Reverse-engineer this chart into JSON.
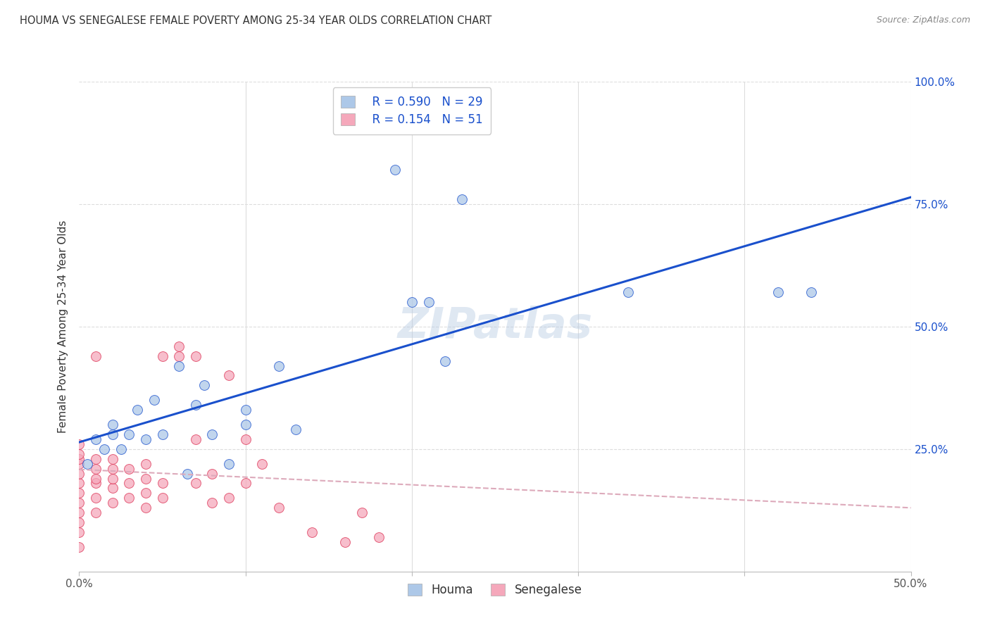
{
  "title": "HOUMA VS SENEGALESE FEMALE POVERTY AMONG 25-34 YEAR OLDS CORRELATION CHART",
  "source": "Source: ZipAtlas.com",
  "ylabel": "Female Poverty Among 25-34 Year Olds",
  "xlim": [
    0.0,
    0.5
  ],
  "ylim": [
    0.0,
    1.0
  ],
  "xticks": [
    0.0,
    0.1,
    0.2,
    0.3,
    0.4,
    0.5
  ],
  "xticklabels": [
    "0.0%",
    "",
    "",
    "",
    "",
    "50.0%"
  ],
  "yticks": [
    0.0,
    0.25,
    0.5,
    0.75,
    1.0
  ],
  "yticklabels": [
    "",
    "25.0%",
    "50.0%",
    "75.0%",
    "100.0%"
  ],
  "houma_R": "0.590",
  "houma_N": "29",
  "senegalese_R": "0.154",
  "senegalese_N": "51",
  "houma_color": "#adc8e8",
  "senegalese_color": "#f5a8bb",
  "houma_line_color": "#1a50cc",
  "senegalese_line_color": "#dd3355",
  "watermark": "ZIPatlas",
  "houma_points_x": [
    0.005,
    0.01,
    0.015,
    0.02,
    0.02,
    0.025,
    0.03,
    0.035,
    0.04,
    0.045,
    0.05,
    0.06,
    0.065,
    0.07,
    0.075,
    0.08,
    0.09,
    0.1,
    0.1,
    0.12,
    0.13,
    0.2,
    0.21,
    0.22,
    0.33,
    0.42,
    0.44,
    0.23,
    0.19
  ],
  "houma_points_y": [
    0.22,
    0.27,
    0.25,
    0.28,
    0.3,
    0.25,
    0.28,
    0.33,
    0.27,
    0.35,
    0.28,
    0.42,
    0.2,
    0.34,
    0.38,
    0.28,
    0.22,
    0.3,
    0.33,
    0.42,
    0.29,
    0.55,
    0.55,
    0.43,
    0.57,
    0.57,
    0.57,
    0.76,
    0.82
  ],
  "senegalese_points_x": [
    0.0,
    0.0,
    0.0,
    0.0,
    0.0,
    0.0,
    0.0,
    0.0,
    0.0,
    0.0,
    0.0,
    0.0,
    0.01,
    0.01,
    0.01,
    0.01,
    0.01,
    0.01,
    0.01,
    0.02,
    0.02,
    0.02,
    0.02,
    0.02,
    0.03,
    0.03,
    0.03,
    0.04,
    0.04,
    0.04,
    0.04,
    0.05,
    0.05,
    0.05,
    0.06,
    0.06,
    0.07,
    0.07,
    0.07,
    0.08,
    0.08,
    0.09,
    0.09,
    0.1,
    0.1,
    0.11,
    0.12,
    0.14,
    0.16,
    0.17,
    0.18
  ],
  "senegalese_points_y": [
    0.05,
    0.08,
    0.1,
    0.12,
    0.14,
    0.16,
    0.18,
    0.2,
    0.22,
    0.23,
    0.24,
    0.26,
    0.12,
    0.15,
    0.18,
    0.19,
    0.21,
    0.23,
    0.44,
    0.14,
    0.17,
    0.19,
    0.21,
    0.23,
    0.15,
    0.18,
    0.21,
    0.13,
    0.16,
    0.19,
    0.22,
    0.15,
    0.18,
    0.44,
    0.44,
    0.46,
    0.18,
    0.27,
    0.44,
    0.14,
    0.2,
    0.15,
    0.4,
    0.18,
    0.27,
    0.22,
    0.13,
    0.08,
    0.06,
    0.12,
    0.07
  ],
  "background_color": "#ffffff",
  "grid_color": "#dddddd"
}
